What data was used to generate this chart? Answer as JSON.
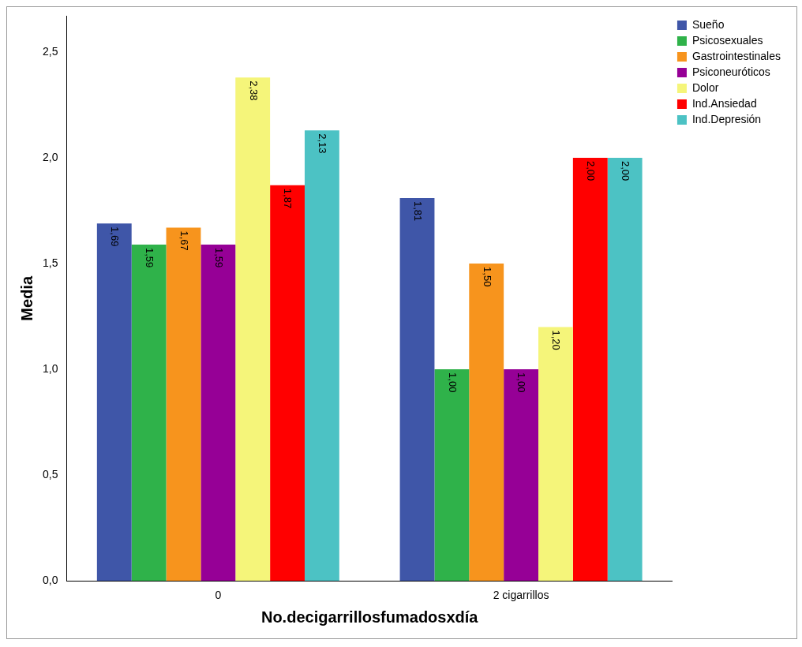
{
  "chart_data": {
    "type": "bar",
    "xlabel": "No.decigarrillosfumadosxdía",
    "ylabel": "Media",
    "categories": [
      "0",
      "2 cigarrillos"
    ],
    "series": [
      {
        "name": "Sueño",
        "color": "#3f56a8",
        "values": [
          1.69,
          1.81
        ],
        "value_labels": [
          "1,69",
          "1,81"
        ]
      },
      {
        "name": "Psicosexuales",
        "color": "#2fb24a",
        "values": [
          1.59,
          1.0
        ],
        "value_labels": [
          "1,59",
          "1,00"
        ]
      },
      {
        "name": "Gastrointestinales",
        "color": "#f7941d",
        "values": [
          1.67,
          1.5
        ],
        "value_labels": [
          "1,67",
          "1,50"
        ]
      },
      {
        "name": "Psiconeuróticos",
        "color": "#960096",
        "values": [
          1.59,
          1.0
        ],
        "value_labels": [
          "1,59",
          "1,00"
        ]
      },
      {
        "name": "Dolor",
        "color": "#f5f57a",
        "values": [
          2.38,
          1.2
        ],
        "value_labels": [
          "2,38",
          "1,20"
        ]
      },
      {
        "name": "Ind.Ansiedad",
        "color": "#ff0000",
        "values": [
          1.87,
          2.0
        ],
        "value_labels": [
          "1,87",
          "2,00"
        ]
      },
      {
        "name": "Ind.Depresión",
        "color": "#4cc2c4",
        "values": [
          2.13,
          2.0
        ],
        "value_labels": [
          "2,13",
          "2,00"
        ]
      }
    ],
    "ylim": [
      0,
      2.67
    ],
    "yticks": [
      {
        "value": 0,
        "label": "0,0"
      },
      {
        "value": 0.5,
        "label": "0,5"
      },
      {
        "value": 1,
        "label": "1,0"
      },
      {
        "value": 1.5,
        "label": "1,5"
      },
      {
        "value": 2,
        "label": "2,0"
      },
      {
        "value": 2.5,
        "label": "2,5"
      }
    ],
    "grid": false,
    "legend": "top right"
  }
}
